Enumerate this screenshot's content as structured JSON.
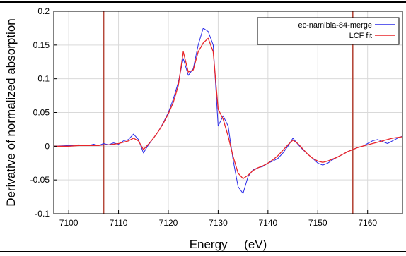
{
  "chart_data": {
    "type": "line",
    "xlabel": "Energy     (eV)",
    "ylabel": "Derivative of normalized absorption",
    "xlim": [
      7097,
      7167
    ],
    "ylim": [
      -0.1,
      0.2
    ],
    "x_ticks": [
      7100,
      7110,
      7120,
      7130,
      7140,
      7150,
      7160
    ],
    "y_ticks": [
      -0.1,
      -0.05,
      0,
      0.05,
      0.1,
      0.15,
      0.2
    ],
    "y_tick_labels": [
      "-0.1",
      "-0.05",
      "0",
      "0.05",
      "0.1",
      "0.15",
      "0.2"
    ],
    "grid": true,
    "legend_position": "top-right",
    "vertical_lines": [
      {
        "x": 7107,
        "color": "#b5483a"
      },
      {
        "x": 7157,
        "color": "#b5483a"
      }
    ],
    "series": [
      {
        "name": "ec-namibia-84-merge",
        "color": "#2b2be8",
        "x": [
          7097,
          7100,
          7102,
          7104,
          7105,
          7106,
          7107,
          7108,
          7109,
          7110,
          7111,
          7112,
          7113,
          7114,
          7115,
          7116,
          7117,
          7118,
          7119,
          7120,
          7121,
          7122,
          7123,
          7124,
          7125,
          7126,
          7127,
          7128,
          7129,
          7130,
          7131,
          7132,
          7133,
          7134,
          7135,
          7136,
          7137,
          7138,
          7139,
          7140,
          7141,
          7142,
          7143,
          7144,
          7145,
          7146,
          7147,
          7148,
          7149,
          7150,
          7151,
          7152,
          7153,
          7154,
          7155,
          7156,
          7157,
          7158,
          7159,
          7160,
          7161,
          7162,
          7163,
          7164,
          7165,
          7166,
          7167
        ],
        "y": [
          0.0,
          0.001,
          0.002,
          0.001,
          0.003,
          0.001,
          0.004,
          0.002,
          0.005,
          0.003,
          0.008,
          0.01,
          0.018,
          0.01,
          -0.01,
          0.002,
          0.012,
          0.022,
          0.035,
          0.05,
          0.07,
          0.095,
          0.13,
          0.105,
          0.115,
          0.15,
          0.175,
          0.17,
          0.15,
          0.03,
          0.045,
          0.03,
          -0.02,
          -0.06,
          -0.07,
          -0.045,
          -0.035,
          -0.032,
          -0.03,
          -0.025,
          -0.022,
          -0.018,
          -0.01,
          0.0,
          0.012,
          0.003,
          -0.005,
          -0.012,
          -0.018,
          -0.025,
          -0.028,
          -0.025,
          -0.02,
          -0.016,
          -0.012,
          -0.008,
          -0.005,
          -0.002,
          0.0,
          0.004,
          0.008,
          0.01,
          0.007,
          0.004,
          0.008,
          0.012,
          0.015
        ]
      },
      {
        "name": "LCF fit",
        "color": "#e8252a",
        "x": [
          7097,
          7100,
          7102,
          7104,
          7105,
          7106,
          7107,
          7108,
          7109,
          7110,
          7111,
          7112,
          7113,
          7114,
          7115,
          7116,
          7117,
          7118,
          7119,
          7120,
          7121,
          7122,
          7123,
          7124,
          7125,
          7126,
          7127,
          7128,
          7129,
          7130,
          7131,
          7132,
          7133,
          7134,
          7135,
          7136,
          7137,
          7138,
          7139,
          7140,
          7141,
          7142,
          7143,
          7144,
          7145,
          7146,
          7147,
          7148,
          7149,
          7150,
          7151,
          7152,
          7153,
          7154,
          7155,
          7156,
          7157,
          7158,
          7159,
          7160,
          7161,
          7162,
          7163,
          7164,
          7165,
          7166,
          7167
        ],
        "y": [
          0.0,
          0.0,
          0.001,
          0.001,
          0.001,
          0.001,
          0.002,
          0.002,
          0.003,
          0.004,
          0.006,
          0.008,
          0.012,
          0.008,
          -0.005,
          0.003,
          0.012,
          0.022,
          0.034,
          0.048,
          0.065,
          0.09,
          0.14,
          0.11,
          0.113,
          0.14,
          0.153,
          0.16,
          0.14,
          0.055,
          0.04,
          0.015,
          -0.015,
          -0.04,
          -0.048,
          -0.043,
          -0.036,
          -0.032,
          -0.029,
          -0.025,
          -0.02,
          -0.014,
          -0.006,
          0.002,
          0.009,
          0.004,
          -0.004,
          -0.012,
          -0.018,
          -0.022,
          -0.024,
          -0.022,
          -0.019,
          -0.016,
          -0.012,
          -0.008,
          -0.005,
          -0.002,
          0.0,
          0.002,
          0.004,
          0.006,
          0.008,
          0.01,
          0.012,
          0.013,
          0.014
        ]
      }
    ]
  }
}
